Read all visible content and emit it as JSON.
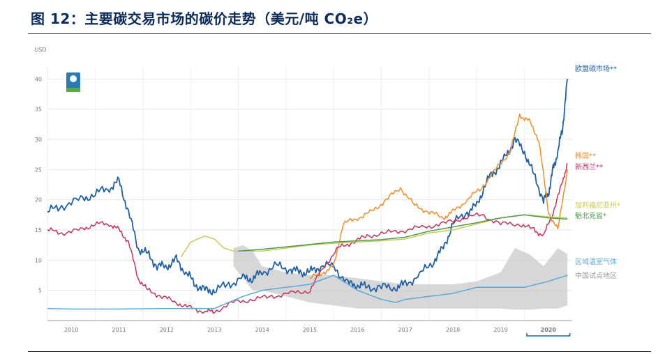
{
  "title": "图 12：主要碳交易市场的碳价走势（美元/吨 CO₂e）",
  "chart_data": {
    "type": "line",
    "title": "主要碳交易市场的碳价走势（美元/吨 CO₂e）",
    "ylabel": "USD",
    "ylim": [
      0,
      42
    ],
    "xlim": [
      2009.5,
      2020.5
    ],
    "yticks": [
      5,
      10,
      15,
      20,
      25,
      30,
      35,
      40
    ],
    "xticks": [
      "2010",
      "2011",
      "2012",
      "2013",
      "2014",
      "2015",
      "2016",
      "2017",
      "2018",
      "2019",
      "2020"
    ],
    "highlight_x": "2020",
    "colors": {
      "eu": "#1f5fa6",
      "korea": "#f08c2c",
      "nz": "#c8315b",
      "california": "#c9c95a",
      "quebec": "#4c9a4c",
      "rggi": "#5aa8d8",
      "china": "#c9c9c9"
    },
    "series": [
      {
        "key": "eu",
        "name": "欧盟碳市场**",
        "color": "#1f5fa6",
        "x": [
          2009.5,
          2009.8,
          2010.2,
          2010.5,
          2010.8,
          2011.0,
          2011.2,
          2011.4,
          2011.6,
          2011.8,
          2012.0,
          2012.2,
          2012.4,
          2012.6,
          2012.8,
          2013.0,
          2013.3,
          2013.6,
          2013.8,
          2014.0,
          2014.3,
          2014.6,
          2014.8,
          2015.0,
          2015.2,
          2015.5,
          2015.8,
          2016.0,
          2016.2,
          2016.5,
          2016.8,
          2017.0,
          2017.3,
          2017.6,
          2017.8,
          2018.0,
          2018.3,
          2018.5,
          2018.7,
          2018.9,
          2019.1,
          2019.3,
          2019.5,
          2019.7,
          2019.9,
          2020.0,
          2020.1,
          2020.2,
          2020.3,
          2020.4
        ],
        "y": [
          18,
          19,
          20,
          21,
          22,
          23,
          18,
          12,
          11,
          9,
          9,
          10,
          8,
          6,
          5,
          5,
          6,
          7,
          7,
          8,
          9,
          8.5,
          8,
          8,
          9,
          9,
          6,
          6,
          5.5,
          5.5,
          5.5,
          6,
          7.5,
          10,
          12,
          16,
          18,
          19,
          23,
          25,
          27,
          30,
          28,
          24,
          20,
          21,
          25,
          28,
          32,
          40
        ]
      },
      {
        "key": "korea",
        "name": "韩国**",
        "color": "#f08c2c",
        "x": [
          2015.0,
          2015.3,
          2015.5,
          2015.7,
          2016.0,
          2016.3,
          2016.6,
          2016.9,
          2017.2,
          2017.5,
          2017.8,
          2018.0,
          2018.3,
          2018.6,
          2018.9,
          2019.2,
          2019.4,
          2019.6,
          2019.8,
          2020.0,
          2020.2,
          2020.4
        ],
        "y": [
          7,
          8,
          9,
          16,
          17,
          18,
          20,
          22,
          19,
          18,
          17,
          18,
          20,
          22,
          25,
          28,
          34,
          33,
          30,
          18,
          15,
          25
        ]
      },
      {
        "key": "nz",
        "name": "新西兰**",
        "color": "#c8315b",
        "x": [
          2009.5,
          2009.8,
          2010.2,
          2010.5,
          2010.8,
          2011.0,
          2011.2,
          2011.4,
          2011.6,
          2011.9,
          2012.2,
          2012.5,
          2012.8,
          2013.0,
          2013.4,
          2013.8,
          2014.2,
          2014.6,
          2015.0,
          2015.3,
          2015.6,
          2015.9,
          2016.2,
          2016.6,
          2017.0,
          2017.4,
          2017.8,
          2018.2,
          2018.6,
          2019.0,
          2019.4,
          2019.7,
          2019.9,
          2020.1,
          2020.3,
          2020.4
        ],
        "y": [
          15,
          14.5,
          15,
          16,
          16,
          15,
          13,
          7,
          5,
          4,
          3,
          2,
          1.5,
          1.5,
          3,
          3.5,
          4,
          4.5,
          5,
          9,
          12,
          13,
          14,
          14.5,
          15,
          15.5,
          16,
          17,
          17.5,
          16,
          16,
          15,
          14,
          18,
          23,
          26
        ]
      },
      {
        "key": "california",
        "name": "加利福尼亚州*",
        "color": "#c9c95a",
        "x": [
          2012.3,
          2012.5,
          2012.8,
          2013.0,
          2013.2,
          2013.4,
          2013.7,
          2014.0,
          2014.5,
          2015.0,
          2015.5,
          2016.0,
          2016.5,
          2017.0,
          2017.5,
          2018.0,
          2018.5,
          2019.0,
          2019.5,
          2020.0,
          2020.4
        ],
        "y": [
          10.5,
          13,
          14,
          13.5,
          12,
          11.5,
          11.5,
          11.5,
          12,
          12.5,
          12.8,
          13,
          13.2,
          13.5,
          14.5,
          15,
          16,
          17,
          17.5,
          17.2,
          17
        ]
      },
      {
        "key": "quebec",
        "name": "魁北克省*",
        "color": "#4c9a4c",
        "x": [
          2013.5,
          2014.0,
          2014.5,
          2015.0,
          2015.5,
          2016.0,
          2016.5,
          2017.0,
          2017.5,
          2018.0,
          2018.5,
          2019.0,
          2019.5,
          2020.0,
          2020.4
        ],
        "y": [
          11.5,
          11.8,
          12.2,
          12.6,
          13,
          13.2,
          13.4,
          13.8,
          14.8,
          15.5,
          16.2,
          17,
          17.5,
          17,
          16.8
        ]
      },
      {
        "key": "rggi",
        "name": "区域温室气体",
        "color": "#5aa8d8",
        "x": [
          2009.5,
          2010.0,
          2011.0,
          2012.0,
          2012.5,
          2013.0,
          2013.3,
          2013.6,
          2014.0,
          2014.5,
          2015.0,
          2015.5,
          2016.0,
          2016.5,
          2016.8,
          2017.0,
          2017.5,
          2018.0,
          2018.5,
          2019.0,
          2019.5,
          2020.0,
          2020.4
        ],
        "y": [
          2,
          1.9,
          1.9,
          2,
          2,
          2,
          3,
          4,
          5,
          5.5,
          6,
          7.5,
          5,
          3.5,
          3,
          3.5,
          4,
          4.5,
          5.5,
          5.5,
          5.5,
          6.5,
          7.5
        ]
      },
      {
        "key": "china",
        "name": "中国试点地区",
        "color": "#c9c9c9",
        "x": [
          2013.4,
          2013.6,
          2013.8,
          2014.0,
          2014.5,
          2015.0,
          2015.5,
          2016.0,
          2016.5,
          2017.0,
          2017.5,
          2018.0,
          2018.5,
          2019.0,
          2019.3,
          2019.6,
          2019.9,
          2020.2,
          2020.4
        ],
        "y_high": [
          12,
          12.5,
          11.5,
          9,
          8,
          7.5,
          7.5,
          7,
          6.5,
          6,
          6,
          6,
          6.5,
          8,
          12,
          11,
          9,
          12,
          11
        ],
        "y_low": [
          9,
          7,
          5,
          5,
          4,
          3,
          2.5,
          2,
          2,
          2,
          2,
          2,
          2,
          2,
          1.8,
          1.8,
          2,
          2,
          2.5
        ]
      }
    ]
  }
}
